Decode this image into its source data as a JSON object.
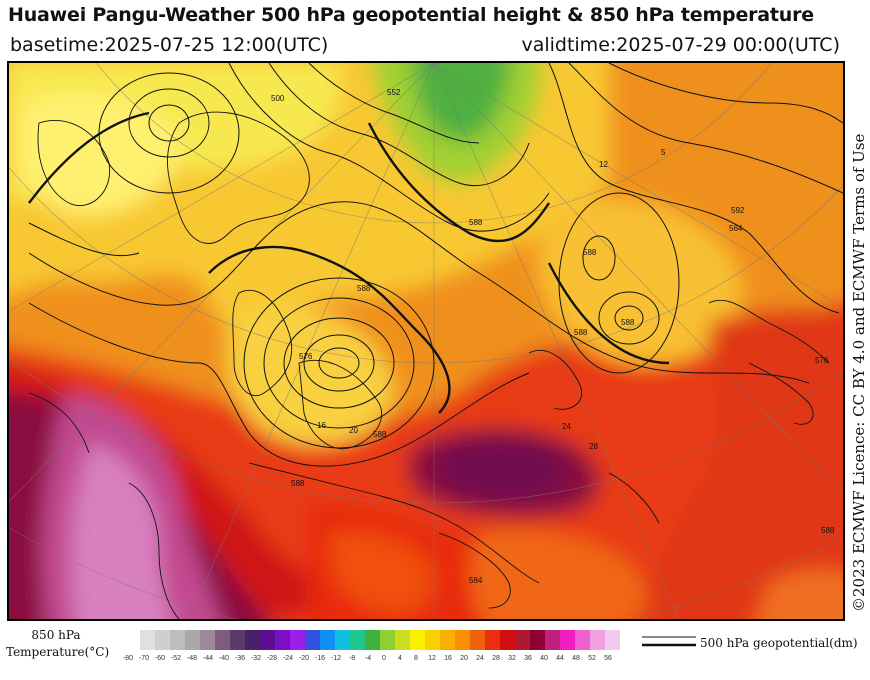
{
  "header": {
    "title": "Huawei Pangu-Weather 500 hPa geopotential height & 850 hPa temperature",
    "basetime": "basetime:2025-07-25 12:00(UTC)",
    "validtime": "validtime:2025-07-29 00:00(UTC)"
  },
  "licence": "©2023 ECMWF Licence: CC BY 4.0 and ECMWF Terms of Use",
  "legend": {
    "temperature_label_line1": "850 hPa",
    "temperature_label_line2": "Temperature(°C)",
    "ticks": [
      "-80",
      "-70",
      "-60",
      "-52",
      "-48",
      "-44",
      "-40",
      "-36",
      "-32",
      "-28",
      "-24",
      "-20",
      "-16",
      "-12",
      "-8",
      "-4",
      "0",
      "4",
      "8",
      "12",
      "16",
      "20",
      "24",
      "28",
      "32",
      "36",
      "40",
      "44",
      "48",
      "52",
      "56"
    ],
    "colors": [
      "#e0e0e0",
      "#cfcfcf",
      "#bdbdbd",
      "#a9a9a9",
      "#9a8a9a",
      "#7d5c7d",
      "#5e3a6a",
      "#4a1f6b",
      "#5a1090",
      "#7a10c0",
      "#9a20e8",
      "#3050e0",
      "#1090f0",
      "#10c0e0",
      "#20c890",
      "#40b040",
      "#90d030",
      "#c8e020",
      "#f8f000",
      "#f8d000",
      "#f8b000",
      "#f89000",
      "#f06010",
      "#e83010",
      "#d01010",
      "#b01830",
      "#900030",
      "#c02080",
      "#f020c0",
      "#f060d0",
      "#f0a0e0",
      "#f0c8f0"
    ],
    "line_label": "500 hPa geopotential(dm)"
  },
  "map": {
    "contour_labels": [
      "500",
      "552",
      "588",
      "12",
      "576",
      "5",
      "588",
      "588",
      "588",
      "592",
      "576",
      "588",
      "24",
      "28",
      "588",
      "584",
      "588",
      "564",
      "588",
      "20",
      "16"
    ]
  }
}
